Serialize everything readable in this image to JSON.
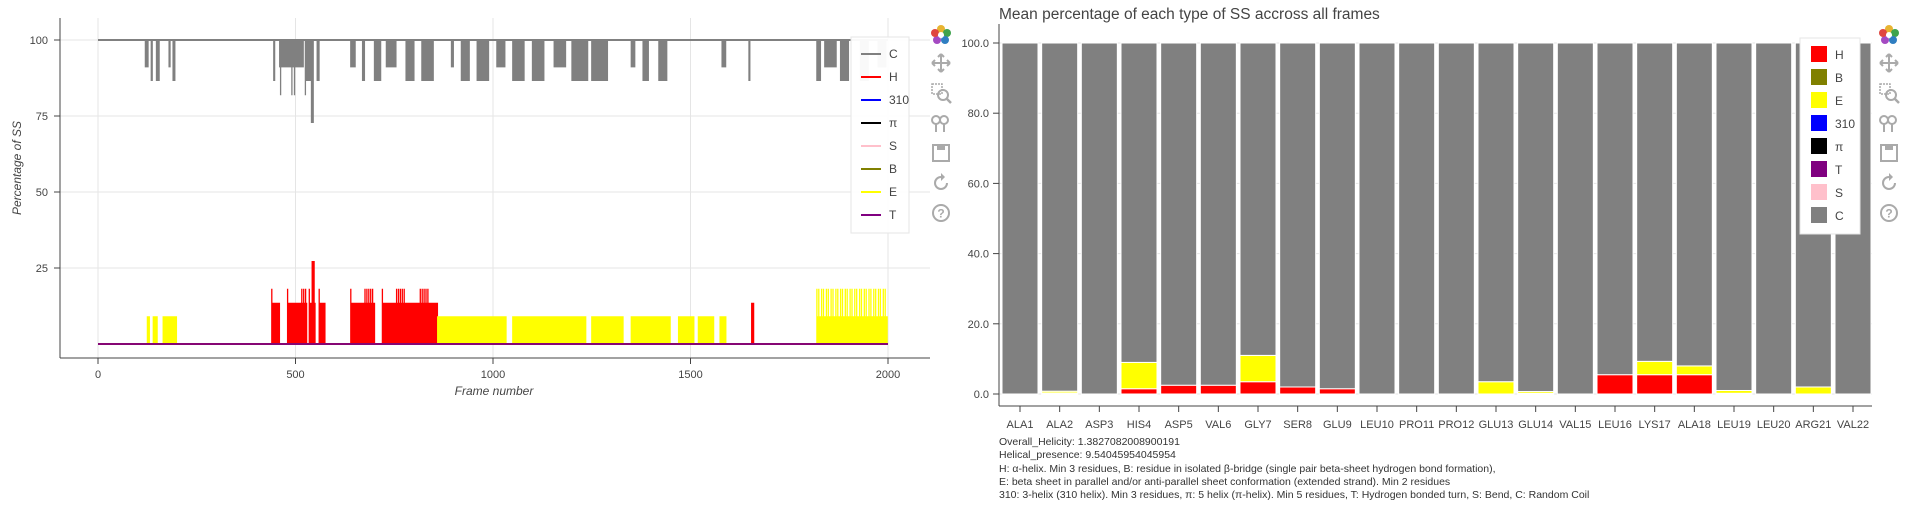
{
  "left": {
    "ylabel": "Percentage of SS",
    "xlabel": "Frame number",
    "xticks": [
      "0",
      "500",
      "1000",
      "1500",
      "2000"
    ],
    "yticks": [
      "25",
      "50",
      "75",
      "100"
    ],
    "legend": [
      "C",
      "H",
      "310",
      "π",
      "S",
      "B",
      "E",
      "T"
    ]
  },
  "right": {
    "title": "Mean percentage of each type of SS accross all frames",
    "yticks": [
      "0.0",
      "20.0",
      "40.0",
      "60.0",
      "80.0",
      "100.0"
    ],
    "legend": [
      "H",
      "B",
      "E",
      "310",
      "π",
      "T",
      "S",
      "C"
    ]
  },
  "notes": {
    "helicity": "Overall_Helicity: 1.382708200890019​1",
    "helical_presence": "Helical_presence: 9.54045954045954",
    "line1": "H: α-helix. Min 3 residues, B: residue in isolated β-bridge (single pair beta-sheet hydrogen bond formation),",
    "line2": "E: beta sheet in parallel and/or anti-parallel sheet conformation (extended strand). Min 2 residues",
    "line3": "310: 3-helix (310 helix). Min 3 residues, π: 5 helix (π-helix). Min 5 residues, T: Hydrogen bonded turn, S: Bend, C: Random Coil"
  },
  "colors": {
    "C": "#808080",
    "H": "#ff0000",
    "310": "#0000ff",
    "pi": "#000000",
    "S": "#ffc0cb",
    "B": "#808000",
    "E": "#ffff00",
    "T": "#800080"
  },
  "chart_data": [
    {
      "type": "line",
      "title": "",
      "xlabel": "Frame number",
      "ylabel": "Percentage of SS",
      "xlim": [
        0,
        2000
      ],
      "ylim": [
        0,
        100
      ],
      "series": [
        {
          "name": "C",
          "baseline": 100,
          "dips": [
            [
              120,
              127
            ],
            [
              135,
              139
            ],
            [
              148,
              155
            ],
            [
              180,
              183
            ],
            [
              190,
              195
            ],
            [
              445,
              449
            ],
            [
              460,
              520
            ],
            [
              525,
              545
            ],
            [
              555,
              560
            ],
            [
              640,
              652
            ],
            [
              670,
              675
            ],
            [
              700,
              716
            ],
            [
              730,
              755
            ],
            [
              780,
              800
            ],
            [
              820,
              850
            ],
            [
              895,
              900
            ],
            [
              920,
              940
            ],
            [
              960,
              990
            ],
            [
              1010,
              1030
            ],
            [
              1050,
              1080
            ],
            [
              1100,
              1130
            ],
            [
              1155,
              1185
            ],
            [
              1200,
              1240
            ],
            [
              1250,
              1290
            ],
            [
              1350,
              1360
            ],
            [
              1380,
              1395
            ],
            [
              1420,
              1440
            ],
            [
              1580,
              1590
            ],
            [
              1648,
              1652
            ],
            [
              1820,
              1830
            ],
            [
              1840,
              1870
            ],
            [
              1880,
              1900
            ],
            [
              1930,
              1950
            ],
            [
              1975,
              1995
            ]
          ]
        },
        {
          "name": "H",
          "baseline": 0,
          "spikes": [
            [
              440,
              460
            ],
            [
              480,
              530
            ],
            [
              535,
              550
            ],
            [
              560,
              575
            ],
            [
              640,
              700
            ],
            [
              720,
              860
            ],
            [
              1655,
              1660
            ]
          ]
        },
        {
          "name": "310",
          "baseline": 0
        },
        {
          "name": "π",
          "baseline": 0
        },
        {
          "name": "S",
          "baseline": 0
        },
        {
          "name": "B",
          "baseline": 0
        },
        {
          "name": "E",
          "baseline": 0,
          "spikes": [
            [
              125,
              130
            ],
            [
              140,
              150
            ],
            [
              165,
              200
            ],
            [
              860,
              1035
            ],
            [
              1050,
              1235
            ],
            [
              1250,
              1330
            ],
            [
              1350,
              1450
            ],
            [
              1470,
              1510
            ],
            [
              1520,
              1560
            ],
            [
              1575,
              1590
            ],
            [
              1820,
              2000
            ]
          ]
        },
        {
          "name": "T",
          "baseline": 0
        }
      ]
    },
    {
      "type": "bar",
      "stacked": true,
      "title": "Mean percentage of each type of SS accross all frames",
      "categories": [
        "ALA1",
        "ALA2",
        "ASP3",
        "HIS4",
        "ASP5",
        "VAL6",
        "GLY7",
        "SER8",
        "GLU9",
        "LEU10",
        "PRO11",
        "PRO12",
        "GLU13",
        "GLU14",
        "VAL15",
        "LEU16",
        "LYS17",
        "ALA18",
        "LEU19",
        "LEU20",
        "ARG21",
        "VAL22"
      ],
      "ylim": [
        0,
        100
      ],
      "series": [
        {
          "name": "H",
          "values": [
            0,
            0,
            0,
            1.5,
            2.5,
            2.5,
            3.5,
            2,
            1.5,
            0,
            0,
            0,
            0,
            0,
            0,
            5.5,
            5.5,
            5.5,
            0,
            0,
            0,
            0
          ]
        },
        {
          "name": "B",
          "values": [
            0,
            0.3,
            0,
            0,
            0,
            0,
            0,
            0,
            0,
            0,
            0,
            0,
            0,
            0.2,
            0,
            0,
            0,
            0,
            0.2,
            0,
            0,
            0
          ]
        },
        {
          "name": "E",
          "values": [
            0,
            0.5,
            0,
            7.5,
            0,
            0,
            7.5,
            0,
            0,
            0,
            0,
            0,
            3.5,
            0.5,
            0,
            0,
            3.8,
            2.5,
            0.8,
            0,
            2,
            0
          ]
        },
        {
          "name": "310",
          "values": [
            0,
            0,
            0,
            0,
            0,
            0,
            0,
            0,
            0,
            0,
            0,
            0,
            0,
            0,
            0,
            0,
            0,
            0,
            0,
            0,
            0,
            0
          ]
        },
        {
          "name": "π",
          "values": [
            0,
            0,
            0,
            0,
            0,
            0,
            0,
            0,
            0,
            0,
            0,
            0,
            0,
            0,
            0,
            0,
            0,
            0,
            0,
            0,
            0,
            0
          ]
        },
        {
          "name": "T",
          "values": [
            0,
            0,
            0,
            0,
            0,
            0,
            0,
            0,
            0,
            0,
            0,
            0,
            0,
            0,
            0,
            0,
            0,
            0,
            0,
            0,
            0,
            0
          ]
        },
        {
          "name": "S",
          "values": [
            0,
            0,
            0,
            0,
            0,
            0,
            0,
            0,
            0,
            0,
            0,
            0,
            0,
            0,
            0,
            0,
            0,
            0,
            0,
            0,
            0,
            0
          ]
        },
        {
          "name": "C",
          "values": [
            100,
            99.2,
            100,
            91,
            97.5,
            97.5,
            89,
            98,
            98.5,
            100,
            100,
            100,
            96.5,
            99.3,
            100,
            94.5,
            90.7,
            92,
            99,
            100,
            98,
            100
          ]
        }
      ]
    }
  ]
}
